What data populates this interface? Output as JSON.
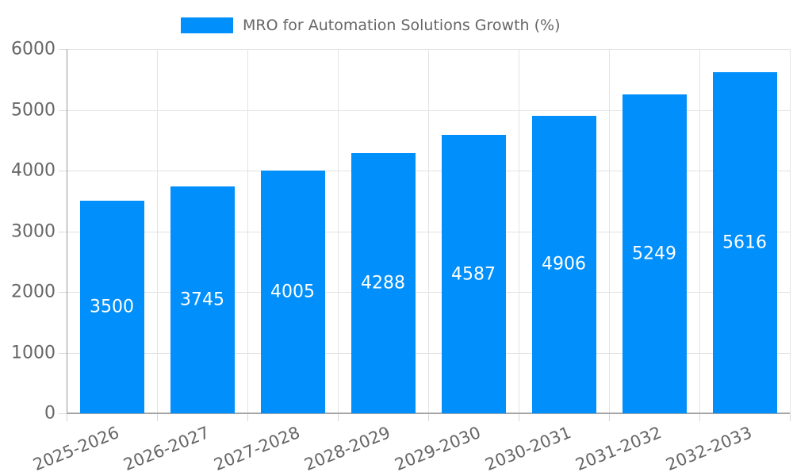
{
  "legend": {
    "label": "MRO for Automation Solutions Growth (%)"
  },
  "chart_data": {
    "type": "bar",
    "title": "MRO for Automation Solutions Growth (%)",
    "categories": [
      "2025-2026",
      "2026-2027",
      "2027-2028",
      "2028-2029",
      "2029-2030",
      "2030-2031",
      "2031-2032",
      "2032-2033"
    ],
    "values": [
      3500,
      3745,
      4005,
      4288,
      4587,
      4906,
      5249,
      5616
    ],
    "value_labels": [
      "3500",
      "3745",
      "4005",
      "4288",
      "4587",
      "4906",
      "5249",
      "5616"
    ],
    "y_ticks": [
      0,
      1000,
      2000,
      3000,
      4000,
      5000,
      6000
    ],
    "ylim": [
      0,
      6000
    ],
    "xlabel": "",
    "ylabel": "",
    "grid": "horizontal-and-vertical",
    "legend_position": "top",
    "x_label_rotation_deg": -22,
    "colors": {
      "bar": "#008FFB",
      "value_label": "#ffffff",
      "axis_text": "#666666",
      "gridline": "#e3e3e3",
      "axis_line": "#9e9e9e"
    }
  }
}
